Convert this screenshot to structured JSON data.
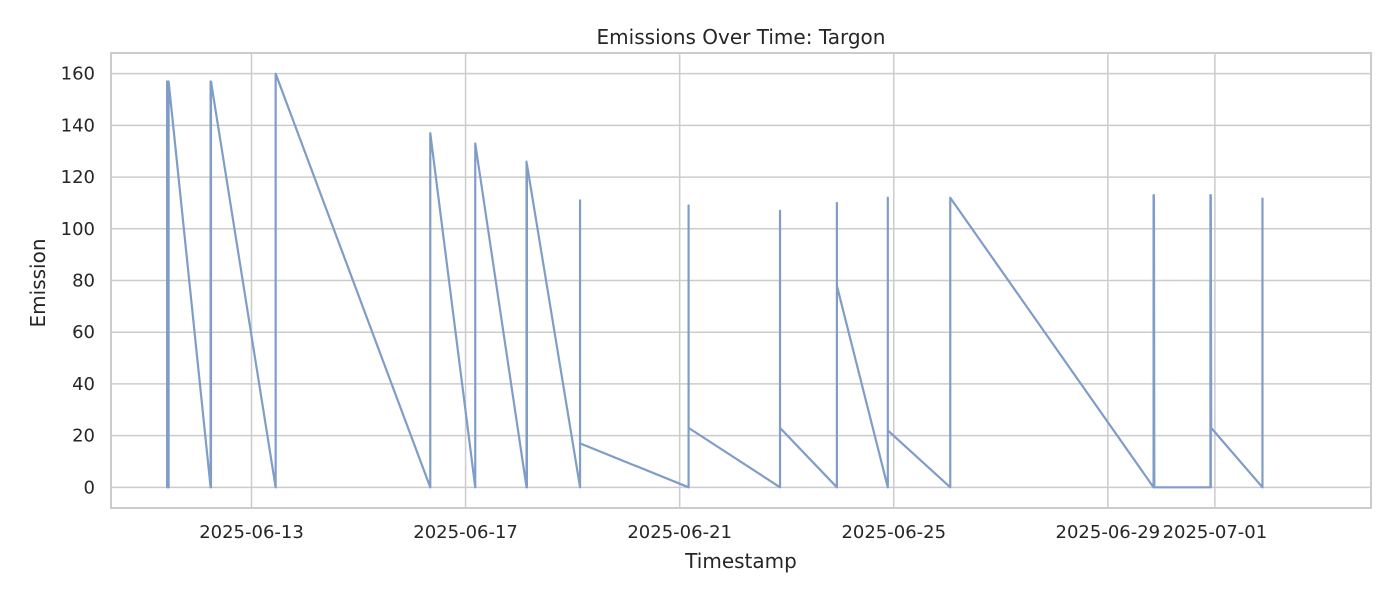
{
  "chart_data": {
    "type": "line",
    "title": "Emissions Over Time: Targon",
    "xlabel": "Timestamp",
    "ylabel": "Emission",
    "x_axis_type": "date",
    "xlim": [
      "2025-06-10T09:00",
      "2025-07-03T22:00"
    ],
    "ylim": [
      -8,
      168
    ],
    "x_ticks": [
      "2025-06-13",
      "2025-06-17",
      "2025-06-21",
      "2025-06-25",
      "2025-06-29",
      "2025-07-01"
    ],
    "y_ticks": [
      0,
      20,
      40,
      60,
      80,
      100,
      120,
      140,
      160
    ],
    "grid": true,
    "line_color": "#7f9dc8",
    "series": [
      {
        "x": [
          "2025-06-11T10:10",
          "2025-06-11T10:10",
          "2025-06-11T10:20",
          "2025-06-11T10:20",
          "2025-06-11T10:30",
          "2025-06-11T10:30",
          "2025-06-11T10:40",
          "2025-06-11T10:40",
          "2025-06-11T10:50",
          "2025-06-11T10:50",
          "2025-06-12T05:40",
          "2025-06-12T05:40",
          "2025-06-12T05:50",
          "2025-06-12T05:50",
          "2025-06-13T10:50",
          "2025-06-13T10:50",
          "2025-06-16T08:10",
          "2025-06-16T08:10",
          "2025-06-17T04:20",
          "2025-06-17T04:20",
          "2025-06-18T03:20",
          "2025-06-18T03:20",
          "2025-06-18T03:30",
          "2025-06-18T03:30",
          "2025-06-19T03:20",
          "2025-06-19T03:20",
          "2025-06-19T03:20",
          "2025-06-21T04:00",
          "2025-06-21T04:00",
          "2025-06-21T04:00",
          "2025-06-22T21:00",
          "2025-06-22T21:00",
          "2025-06-22T21:00",
          "2025-06-23T22:30",
          "2025-06-23T22:30",
          "2025-06-23T22:30",
          "2025-06-24T21:20",
          "2025-06-24T21:20",
          "2025-06-24T21:20",
          "2025-06-26T01:20",
          "2025-06-26T01:20",
          "2025-06-29T20:30",
          "2025-06-29T20:30",
          "2025-06-29T20:40",
          "2025-06-29T20:40",
          "2025-06-29T20:50",
          "2025-06-30T22:00",
          "2025-06-30T22:00",
          "2025-06-30T22:10",
          "2025-06-30T22:10",
          "2025-06-30T22:20",
          "2025-07-01T21:20",
          "2025-07-01T21:20"
        ],
        "y": [
          0,
          157,
          0,
          157,
          0,
          157,
          0,
          157,
          0,
          157,
          0,
          157,
          0,
          157,
          0,
          160,
          0,
          137,
          0,
          133,
          0,
          126,
          0,
          125,
          0,
          111,
          17,
          0,
          109,
          23,
          0,
          107,
          23,
          0,
          110,
          78,
          0,
          112,
          22,
          0,
          112,
          0,
          113,
          0,
          113,
          0,
          0,
          113,
          0,
          113,
          23,
          0,
          112
        ]
      }
    ]
  }
}
